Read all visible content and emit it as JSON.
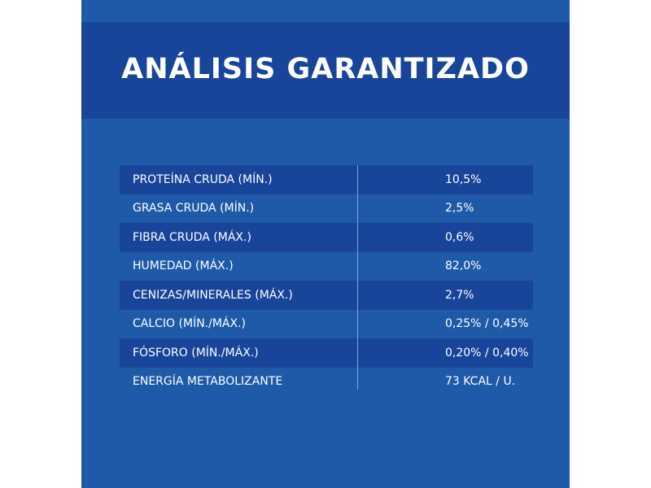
{
  "title": "ANÁLISIS GARANTIZADO",
  "colors": {
    "panel": "#1e5aa8",
    "band": "#18459a",
    "text": "#ffffff"
  },
  "rows": [
    {
      "label": "PROTEÍNA CRUDA (MÍN.)",
      "value": "10,5%"
    },
    {
      "label": "GRASA CRUDA (MÍN.)",
      "value": "2,5%"
    },
    {
      "label": "FIBRA CRUDA (MÁX.)",
      "value": "0,6%"
    },
    {
      "label": "HUMEDAD (MÁX.)",
      "value": "82,0%"
    },
    {
      "label": "CENIZAS/MINERALES (MÁX.)",
      "value": "2,7%"
    },
    {
      "label": "CALCIO (MÍN./MÁX.)",
      "value": "0,25% / 0,45%"
    },
    {
      "label": "FÓSFORO (MÍN./MÁX.)",
      "value": "0,20% / 0,40%"
    },
    {
      "label": "ENERGÍA METABOLIZANTE",
      "value": "73 KCAL / U."
    }
  ]
}
